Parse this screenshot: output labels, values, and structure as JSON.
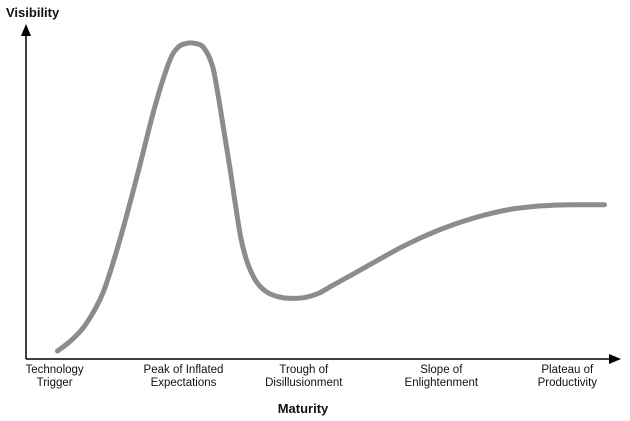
{
  "chart_data": {
    "type": "line",
    "ylabel": "Visibility",
    "xlabel": "Maturity",
    "phases": [
      {
        "lines": [
          "Technology",
          "Trigger"
        ],
        "x": 0.5
      },
      {
        "lines": [
          "Peak of Inflated",
          "Expectations"
        ],
        "x": 2.75
      },
      {
        "lines": [
          "Trough of",
          "Disillusionment"
        ],
        "x": 4.85
      },
      {
        "lines": [
          "Slope of",
          "Enlightenment"
        ],
        "x": 7.25
      },
      {
        "lines": [
          "Plateau of",
          "Productivity"
        ],
        "x": 9.45
      }
    ],
    "xlim": [
      0,
      10.3
    ],
    "ylim": [
      0,
      10.3
    ],
    "grid": false,
    "legend": "none",
    "series": [
      {
        "color": "#8c8c8c",
        "x": [
          0.55,
          0.8,
          1.05,
          1.35,
          1.65,
          1.95,
          2.25,
          2.5,
          2.65,
          2.8,
          2.95,
          3.1,
          3.25,
          3.35,
          3.45,
          3.55,
          3.65,
          3.75,
          3.85,
          3.95,
          4.05,
          4.2,
          4.4,
          4.6,
          4.85,
          5.1,
          5.35,
          5.7,
          6.1,
          6.5,
          6.9,
          7.3,
          7.7,
          8.1,
          8.5,
          8.9,
          9.3,
          9.7,
          10.1
        ],
        "y": [
          0.25,
          0.6,
          1.1,
          2.1,
          3.8,
          5.8,
          7.9,
          9.3,
          9.75,
          9.88,
          9.88,
          9.75,
          9.2,
          8.3,
          7.2,
          6.1,
          4.9,
          3.8,
          3.1,
          2.65,
          2.35,
          2.1,
          1.95,
          1.9,
          1.92,
          2.05,
          2.3,
          2.65,
          3.05,
          3.45,
          3.8,
          4.1,
          4.35,
          4.55,
          4.7,
          4.78,
          4.82,
          4.83,
          4.83
        ]
      }
    ]
  }
}
